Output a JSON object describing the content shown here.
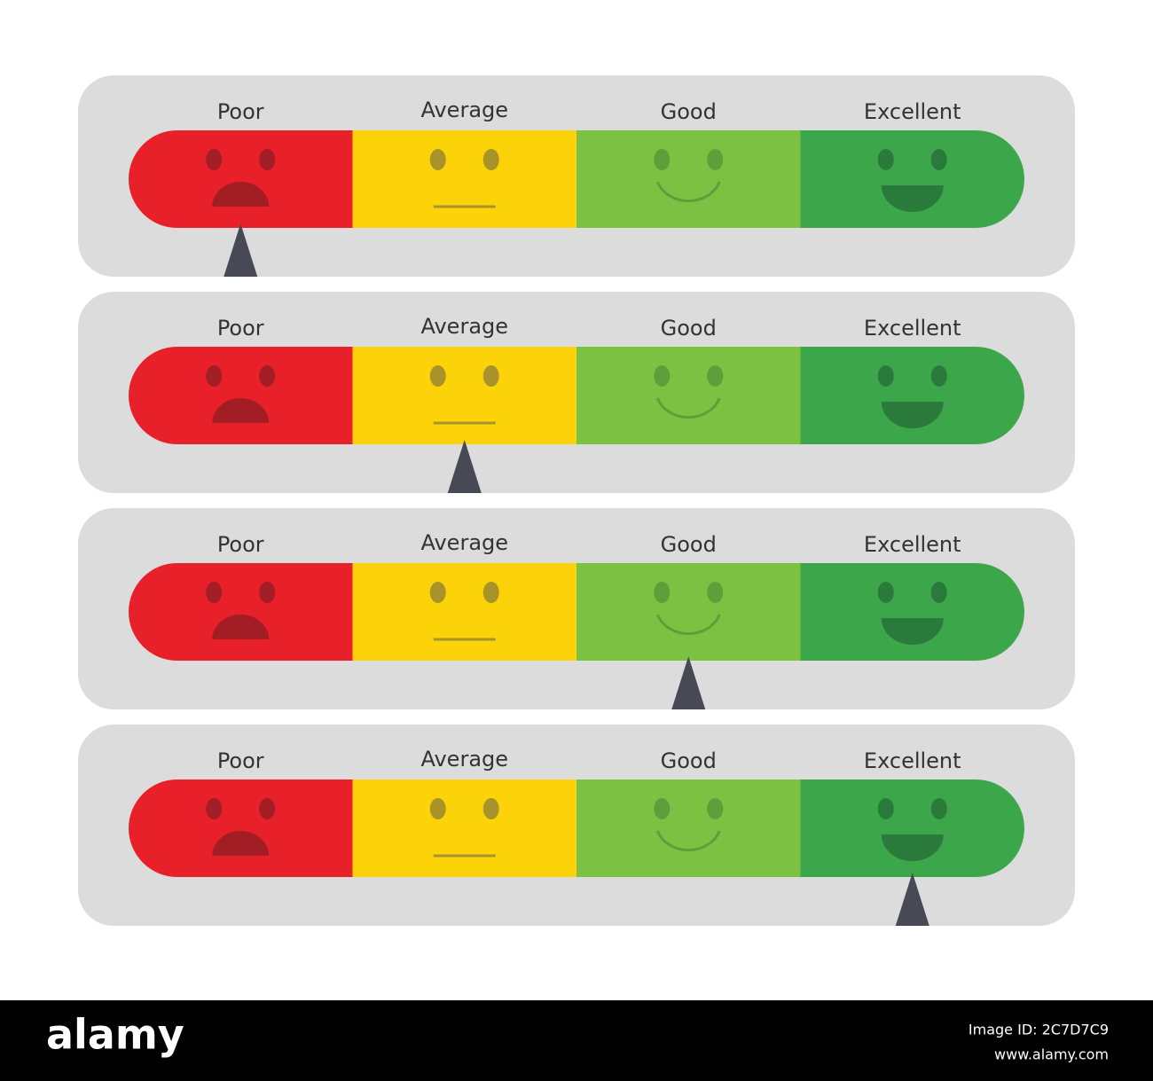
{
  "panels": [
    {
      "labels": [
        "Poor",
        "Average",
        "Good",
        "Excellent"
      ],
      "selected": 0
    },
    {
      "labels": [
        "Poor",
        "Average",
        "Good",
        "Excellent"
      ],
      "selected": 1
    },
    {
      "labels": [
        "Poor",
        "Average",
        "Good",
        "Excellent"
      ],
      "selected": 2
    },
    {
      "labels": [
        "Poor",
        "Average",
        "Good",
        "Excellent"
      ],
      "selected": 3
    }
  ],
  "footer": {
    "brand": "alamy",
    "image_id": "Image ID: 2C7D7C9",
    "url": "www.alamy.com"
  }
}
